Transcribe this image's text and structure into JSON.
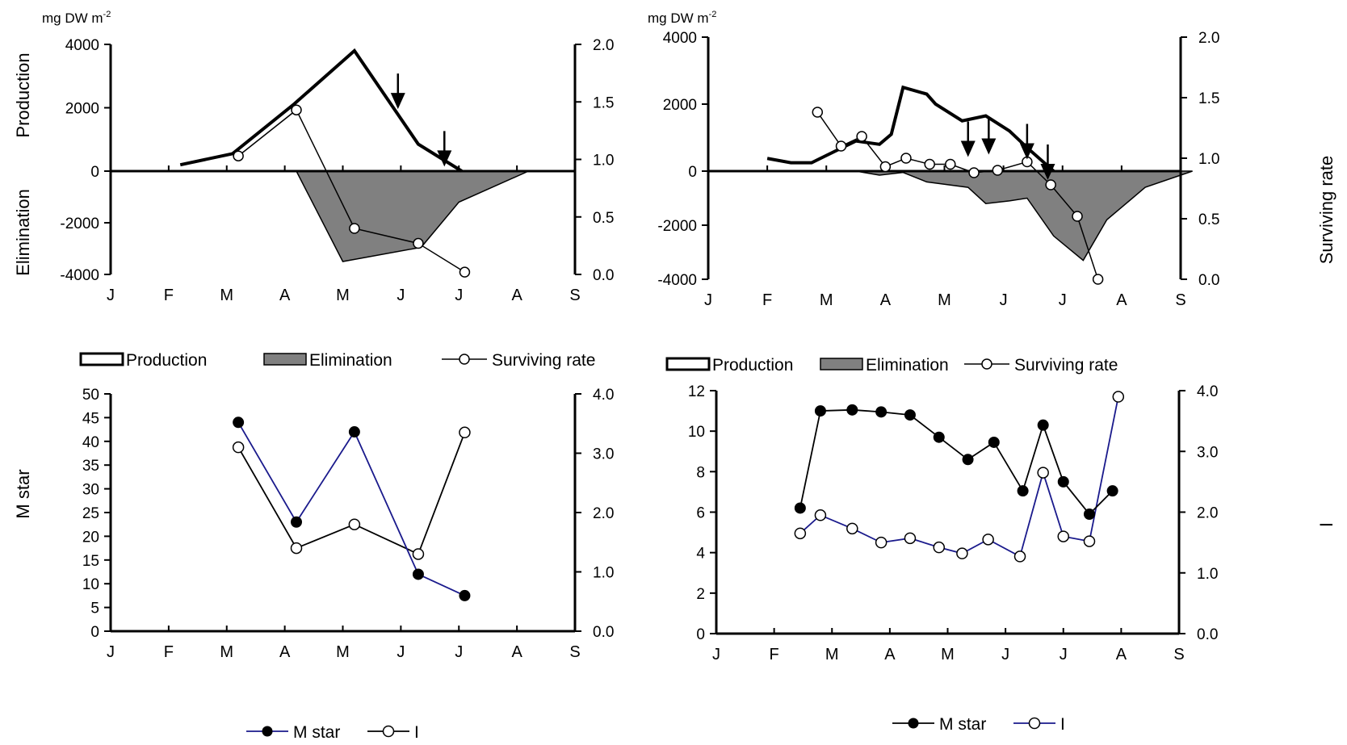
{
  "figure": {
    "unit_label_left": "mg DW m",
    "unit_label_right": "mg DW m",
    "unit_superscript": "-2"
  },
  "chart_data": [
    {
      "id": "top_left",
      "type": "line",
      "ylabel_top": "Production",
      "ylabel_bottom": "Elimination",
      "y2label": "",
      "months": [
        "J",
        "F",
        "M",
        "A",
        "M",
        "J",
        "J",
        "A",
        "S"
      ],
      "ylim": [
        -4000,
        4000
      ],
      "yticks": [
        4000,
        2000,
        0,
        -2000,
        -4000
      ],
      "y2lim": [
        0.0,
        2.0
      ],
      "y2ticks": [
        "2.0",
        "1.5",
        "1.0",
        "0.5",
        "0.0"
      ],
      "series": [
        {
          "name": "Production",
          "values": [
            [
              1.2,
              200
            ],
            [
              2.1,
              550
            ],
            [
              3.15,
              2100
            ],
            [
              4.2,
              3800
            ],
            [
              5.3,
              850
            ],
            [
              6.05,
              0
            ]
          ]
        },
        {
          "name": "Elimination",
          "values": [
            [
              3.2,
              0
            ],
            [
              4.0,
              -3500
            ],
            [
              5.35,
              -2950
            ],
            [
              6.0,
              -1200
            ],
            [
              7.2,
              0
            ]
          ]
        },
        {
          "name": "Surviving rate",
          "values": [
            [
              2.2,
              1.03
            ],
            [
              3.2,
              1.43
            ],
            [
              4.2,
              0.4
            ],
            [
              5.3,
              0.27
            ],
            [
              6.1,
              0.02
            ]
          ]
        }
      ],
      "arrows": [
        [
          4.95,
          1.48
        ],
        [
          5.75,
          0.98
        ]
      ],
      "legend": [
        "Production",
        "Elimination",
        "Surviving rate"
      ]
    },
    {
      "id": "top_right",
      "type": "line",
      "ylabel_top": "",
      "ylabel_bottom": "",
      "y2label": "Surviving rate",
      "months": [
        "J",
        "F",
        "M",
        "A",
        "M",
        "J",
        "J",
        "A",
        "S"
      ],
      "ylim": [
        -4000,
        4000
      ],
      "yticks": [
        4000,
        2000,
        0,
        -2000,
        -4000
      ],
      "y2lim": [
        0.0,
        2.0
      ],
      "y2ticks": [
        "2.0",
        "1.5",
        "1.0",
        "0.5",
        "0.0"
      ],
      "series": [
        {
          "name": "Production",
          "values": [
            [
              1.0,
              380
            ],
            [
              1.4,
              250
            ],
            [
              1.75,
              250
            ],
            [
              2.5,
              900
            ],
            [
              2.9,
              800
            ],
            [
              3.1,
              1100
            ],
            [
              3.3,
              2500
            ],
            [
              3.7,
              2300
            ],
            [
              3.85,
              2000
            ],
            [
              4.3,
              1500
            ],
            [
              4.7,
              1650
            ],
            [
              5.1,
              1200
            ],
            [
              5.4,
              700
            ],
            [
              5.85,
              0
            ]
          ]
        },
        {
          "name": "Elimination",
          "values": [
            [
              1.0,
              0
            ],
            [
              2.5,
              0
            ],
            [
              2.9,
              -150
            ],
            [
              3.3,
              -50
            ],
            [
              3.7,
              -400
            ],
            [
              4.4,
              -600
            ],
            [
              4.7,
              -1200
            ],
            [
              5.1,
              -1100
            ],
            [
              5.4,
              -1000
            ],
            [
              5.85,
              -2400
            ],
            [
              6.35,
              -3300
            ],
            [
              6.75,
              -1800
            ],
            [
              7.4,
              -600
            ],
            [
              8.2,
              0
            ]
          ]
        },
        {
          "name": "Surviving rate",
          "values": [
            [
              1.85,
              1.38
            ],
            [
              2.25,
              1.1
            ],
            [
              2.6,
              1.18
            ],
            [
              3.0,
              0.93
            ],
            [
              3.35,
              1.0
            ],
            [
              3.75,
              0.95
            ],
            [
              4.1,
              0.95
            ],
            [
              4.5,
              0.88
            ],
            [
              4.9,
              0.9
            ],
            [
              5.4,
              0.97
            ],
            [
              5.8,
              0.78
            ],
            [
              6.25,
              0.52
            ],
            [
              6.6,
              0.0
            ]
          ]
        }
      ],
      "arrows": [
        [
          4.4,
          1.05
        ],
        [
          4.75,
          1.07
        ],
        [
          5.4,
          1.03
        ],
        [
          5.75,
          0.86
        ]
      ],
      "legend": [
        "Production",
        "Elimination",
        "Surviving rate"
      ]
    },
    {
      "id": "bottom_left",
      "type": "line",
      "ylabel": "M star",
      "y2label": "",
      "months": [
        "J",
        "F",
        "M",
        "A",
        "M",
        "J",
        "J",
        "A",
        "S"
      ],
      "ylim": [
        0,
        50
      ],
      "yticks": [
        50,
        45,
        40,
        35,
        30,
        25,
        20,
        15,
        10,
        5,
        0
      ],
      "y2lim": [
        0.0,
        4.0
      ],
      "y2ticks": [
        "4.0",
        "3.0",
        "2.0",
        "1.0",
        "0.0"
      ],
      "series": [
        {
          "name": "M star",
          "values": [
            [
              2.2,
              44
            ],
            [
              3.2,
              23
            ],
            [
              4.2,
              42
            ],
            [
              5.3,
              12
            ],
            [
              6.1,
              7.5
            ]
          ]
        },
        {
          "name": "I",
          "values": [
            [
              2.2,
              3.1
            ],
            [
              3.2,
              1.4
            ],
            [
              4.2,
              1.8
            ],
            [
              5.3,
              1.3
            ],
            [
              6.1,
              3.35
            ]
          ]
        }
      ],
      "legend": [
        "M star",
        "I"
      ]
    },
    {
      "id": "bottom_right",
      "type": "line",
      "ylabel": "",
      "y2label": "I",
      "months": [
        "J",
        "F",
        "M",
        "A",
        "M",
        "J",
        "J",
        "A",
        "S"
      ],
      "ylim": [
        0,
        12
      ],
      "yticks": [
        12,
        10,
        8,
        6,
        4,
        2,
        0
      ],
      "y2lim": [
        0.0,
        4.0
      ],
      "y2ticks": [
        "4.0",
        "3.0",
        "2.0",
        "1.0",
        "0.0"
      ],
      "series": [
        {
          "name": "M star",
          "values": [
            [
              1.45,
              6.2
            ],
            [
              1.8,
              11.0
            ],
            [
              2.35,
              11.05
            ],
            [
              2.85,
              10.95
            ],
            [
              3.35,
              10.8
            ],
            [
              3.85,
              9.7
            ],
            [
              4.35,
              8.6
            ],
            [
              4.8,
              9.45
            ],
            [
              5.3,
              7.05
            ],
            [
              5.65,
              10.3
            ],
            [
              6.0,
              7.5
            ],
            [
              6.45,
              5.9
            ],
            [
              6.85,
              7.05
            ]
          ]
        },
        {
          "name": "I",
          "values": [
            [
              1.45,
              1.65
            ],
            [
              1.8,
              1.95
            ],
            [
              2.35,
              1.73
            ],
            [
              2.85,
              1.5
            ],
            [
              3.35,
              1.57
            ],
            [
              3.85,
              1.42
            ],
            [
              4.25,
              1.32
            ],
            [
              4.7,
              1.55
            ],
            [
              5.25,
              1.27
            ],
            [
              5.65,
              2.65
            ],
            [
              6.0,
              1.6
            ],
            [
              6.45,
              1.52
            ],
            [
              6.95,
              3.9
            ]
          ]
        }
      ],
      "legend": [
        "M star",
        "I"
      ]
    }
  ]
}
